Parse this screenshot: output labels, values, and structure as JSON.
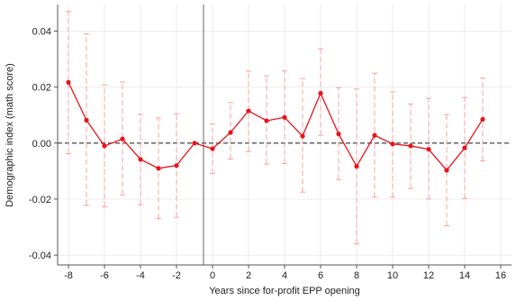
{
  "chart_data": {
    "type": "line",
    "title": "",
    "xlabel": "Years since for-profit EPP opening",
    "ylabel": "Demographic index (math score)",
    "xlim": [
      -8.6,
      16.6
    ],
    "ylim": [
      -0.0435,
      0.0495
    ],
    "xticks": [
      -8,
      -6,
      -4,
      -2,
      0,
      2,
      4,
      6,
      8,
      10,
      12,
      14,
      16
    ],
    "xtick_labels": [
      "-8",
      "-6",
      "-4",
      "-2",
      "0",
      "2",
      "4",
      "6",
      "8",
      "10",
      "12",
      "14",
      "16"
    ],
    "yticks": [
      -0.04,
      -0.02,
      0.0,
      0.02,
      0.04
    ],
    "ytick_labels": [
      "-0.04",
      "-0.02",
      "0.00",
      "0.02",
      "0.04"
    ],
    "grid": true,
    "reference_hline": 0,
    "reference_vline": -0.5,
    "colors": {
      "series": "#e8141c",
      "ci": "#f4a3a3",
      "grid": "#ececec",
      "axis": "#555555",
      "ref": "#333333"
    },
    "series": [
      {
        "x": [
          -8,
          -7,
          -6,
          -5,
          -4,
          -3,
          -2,
          -1,
          0,
          1,
          2,
          3,
          4,
          5,
          6,
          7,
          8,
          9,
          10,
          11,
          12,
          13,
          14,
          15
        ],
        "y": [
          0.0217,
          0.0082,
          -0.001,
          0.0015,
          -0.0058,
          -0.009,
          -0.008,
          0.0,
          -0.002,
          0.0038,
          0.0115,
          0.008,
          0.0092,
          0.0025,
          0.0178,
          0.0033,
          -0.0083,
          0.0028,
          -0.0003,
          -0.001,
          -0.0022,
          -0.0097,
          -0.0017,
          0.0085
        ],
        "ci_low": [
          -0.0038,
          -0.0222,
          -0.0228,
          -0.0185,
          -0.022,
          -0.027,
          -0.0265,
          null,
          -0.0108,
          -0.0057,
          -0.003,
          -0.0075,
          -0.0073,
          -0.0175,
          0.0028,
          -0.013,
          -0.036,
          -0.0193,
          -0.0193,
          -0.0162,
          -0.02,
          -0.0295,
          -0.0198,
          -0.0063
        ],
        "ci_high": [
          0.047,
          0.039,
          0.0208,
          0.0218,
          0.0103,
          0.009,
          0.0105,
          null,
          0.0068,
          0.0145,
          0.0257,
          0.024,
          0.0258,
          0.023,
          0.0337,
          0.0198,
          0.0193,
          0.025,
          0.0183,
          0.014,
          0.016,
          0.0102,
          0.0163,
          0.0232
        ]
      }
    ]
  }
}
